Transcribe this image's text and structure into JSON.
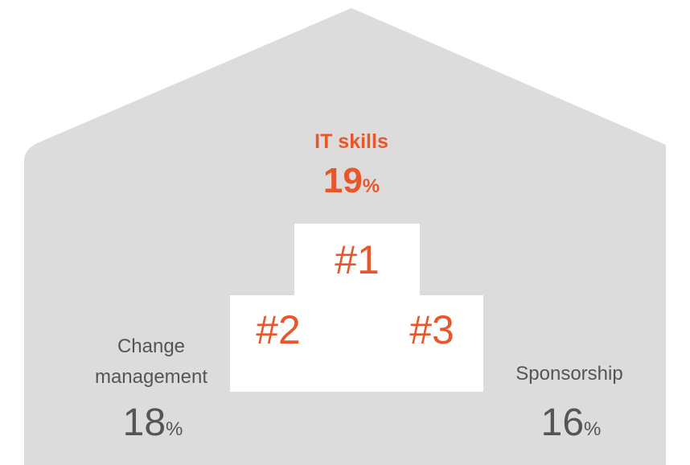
{
  "items": [
    {
      "rank": "#1",
      "label": "IT skills",
      "value": 19,
      "unit": "%"
    },
    {
      "rank": "#2",
      "label": "Change management",
      "value": 18,
      "unit": "%"
    },
    {
      "rank": "#3",
      "label": "Sponsorship",
      "value": 16,
      "unit": "%"
    }
  ]
}
